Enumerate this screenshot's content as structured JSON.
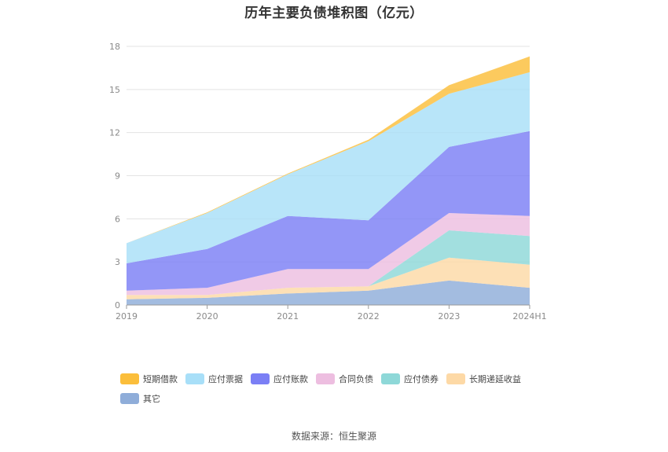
{
  "chart_data": {
    "type": "area",
    "stacked": true,
    "title": "历年主要负债堆积图（亿元）",
    "categories": [
      "2019",
      "2020",
      "2021",
      "2022",
      "2023",
      "2024H1"
    ],
    "ylim": [
      0,
      18
    ],
    "yticks": [
      0,
      3,
      6,
      9,
      12,
      15,
      18
    ],
    "series": [
      {
        "name": "其它",
        "color": "#8fadd9",
        "values": [
          0.4,
          0.5,
          0.8,
          1.0,
          1.7,
          1.2
        ]
      },
      {
        "name": "长期递延收益",
        "color": "#fdd9a6",
        "values": [
          0.3,
          0.2,
          0.4,
          0.3,
          1.6,
          1.6
        ]
      },
      {
        "name": "应付债券",
        "color": "#8ed8d8",
        "values": [
          0,
          0,
          0,
          0,
          1.9,
          2.0
        ]
      },
      {
        "name": "合同负债",
        "color": "#edbee0",
        "values": [
          0.3,
          0.5,
          1.3,
          1.2,
          1.2,
          1.4
        ]
      },
      {
        "name": "应付账款",
        "color": "#7b7ff5",
        "values": [
          1.9,
          2.7,
          3.7,
          3.4,
          4.6,
          5.9
        ]
      },
      {
        "name": "应付票据",
        "color": "#a8dff8",
        "values": [
          1.4,
          2.5,
          2.9,
          5.5,
          3.7,
          4.1
        ]
      },
      {
        "name": "短期借款",
        "color": "#fbbe3b",
        "values": [
          0,
          0.05,
          0.05,
          0.1,
          0.6,
          1.1
        ]
      }
    ],
    "legend_order": [
      "短期借款",
      "应付票据",
      "应付账款",
      "合同负债",
      "应付债券",
      "长期递延收益",
      "其它"
    ],
    "legend_position": "bottom"
  },
  "source_text": "数据来源：恒生聚源"
}
